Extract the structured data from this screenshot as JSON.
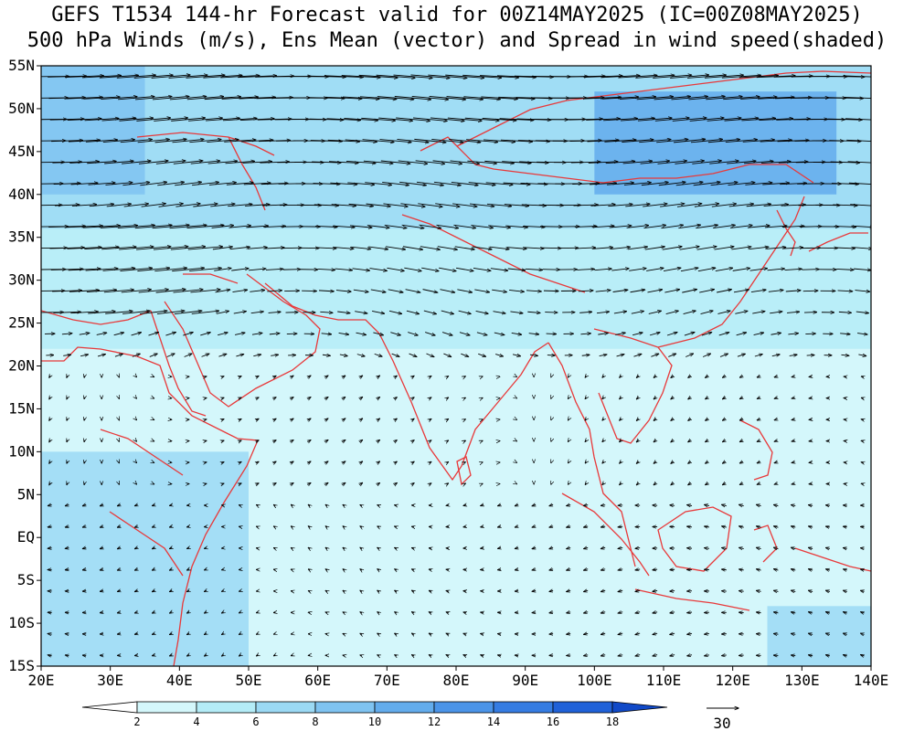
{
  "header": {
    "title_line1": "GEFS T1534 144-hr Forecast valid for 00Z14MAY2025 (IC=00Z08MAY2025)",
    "title_line2": "500 hPa Winds (m/s), Ens Mean (vector) and Spread in wind speed(shaded)"
  },
  "map": {
    "lon_range": [
      20,
      140
    ],
    "lat_range": [
      -15,
      55
    ],
    "coastline_color": "#e8393a",
    "x_ticks": [
      "20E",
      "30E",
      "40E",
      "50E",
      "60E",
      "70E",
      "80E",
      "90E",
      "100E",
      "110E",
      "120E",
      "130E",
      "140E"
    ],
    "y_ticks": [
      "55N",
      "50N",
      "45N",
      "40N",
      "35N",
      "30N",
      "25N",
      "20N",
      "15N",
      "10N",
      "5N",
      "EQ",
      "5S",
      "10S",
      "15S"
    ],
    "shading_regions": [
      {
        "level": 2,
        "lon": [
          20,
          140
        ],
        "lat": [
          -15,
          55
        ]
      },
      {
        "level": 4,
        "lon": [
          20,
          140
        ],
        "lat": [
          22,
          55
        ]
      },
      {
        "level": 6,
        "lon": [
          20,
          140
        ],
        "lat": [
          36,
          55
        ]
      },
      {
        "level": 10,
        "lon": [
          100,
          135
        ],
        "lat": [
          40,
          52
        ]
      },
      {
        "level": 8,
        "lon": [
          20,
          35
        ],
        "lat": [
          40,
          55
        ]
      },
      {
        "level": 6,
        "lon": [
          20,
          50
        ],
        "lat": [
          -15,
          10
        ]
      },
      {
        "level": 6,
        "lon": [
          125,
          140
        ],
        "lat": [
          -15,
          -8
        ]
      }
    ]
  },
  "colorbar": {
    "levels": [
      "2",
      "4",
      "6",
      "8",
      "10",
      "12",
      "14",
      "16",
      "18"
    ],
    "colors": [
      "#ffffff",
      "#d4f7fb",
      "#b4ecf7",
      "#9bd9f4",
      "#7fc3f1",
      "#63acec",
      "#4b94e8",
      "#357ce2",
      "#2061d8",
      "#1049c8"
    ]
  },
  "reference_vector": {
    "label": "30"
  },
  "wind_field": {
    "units": "m/s",
    "ref_speed": 30
  }
}
